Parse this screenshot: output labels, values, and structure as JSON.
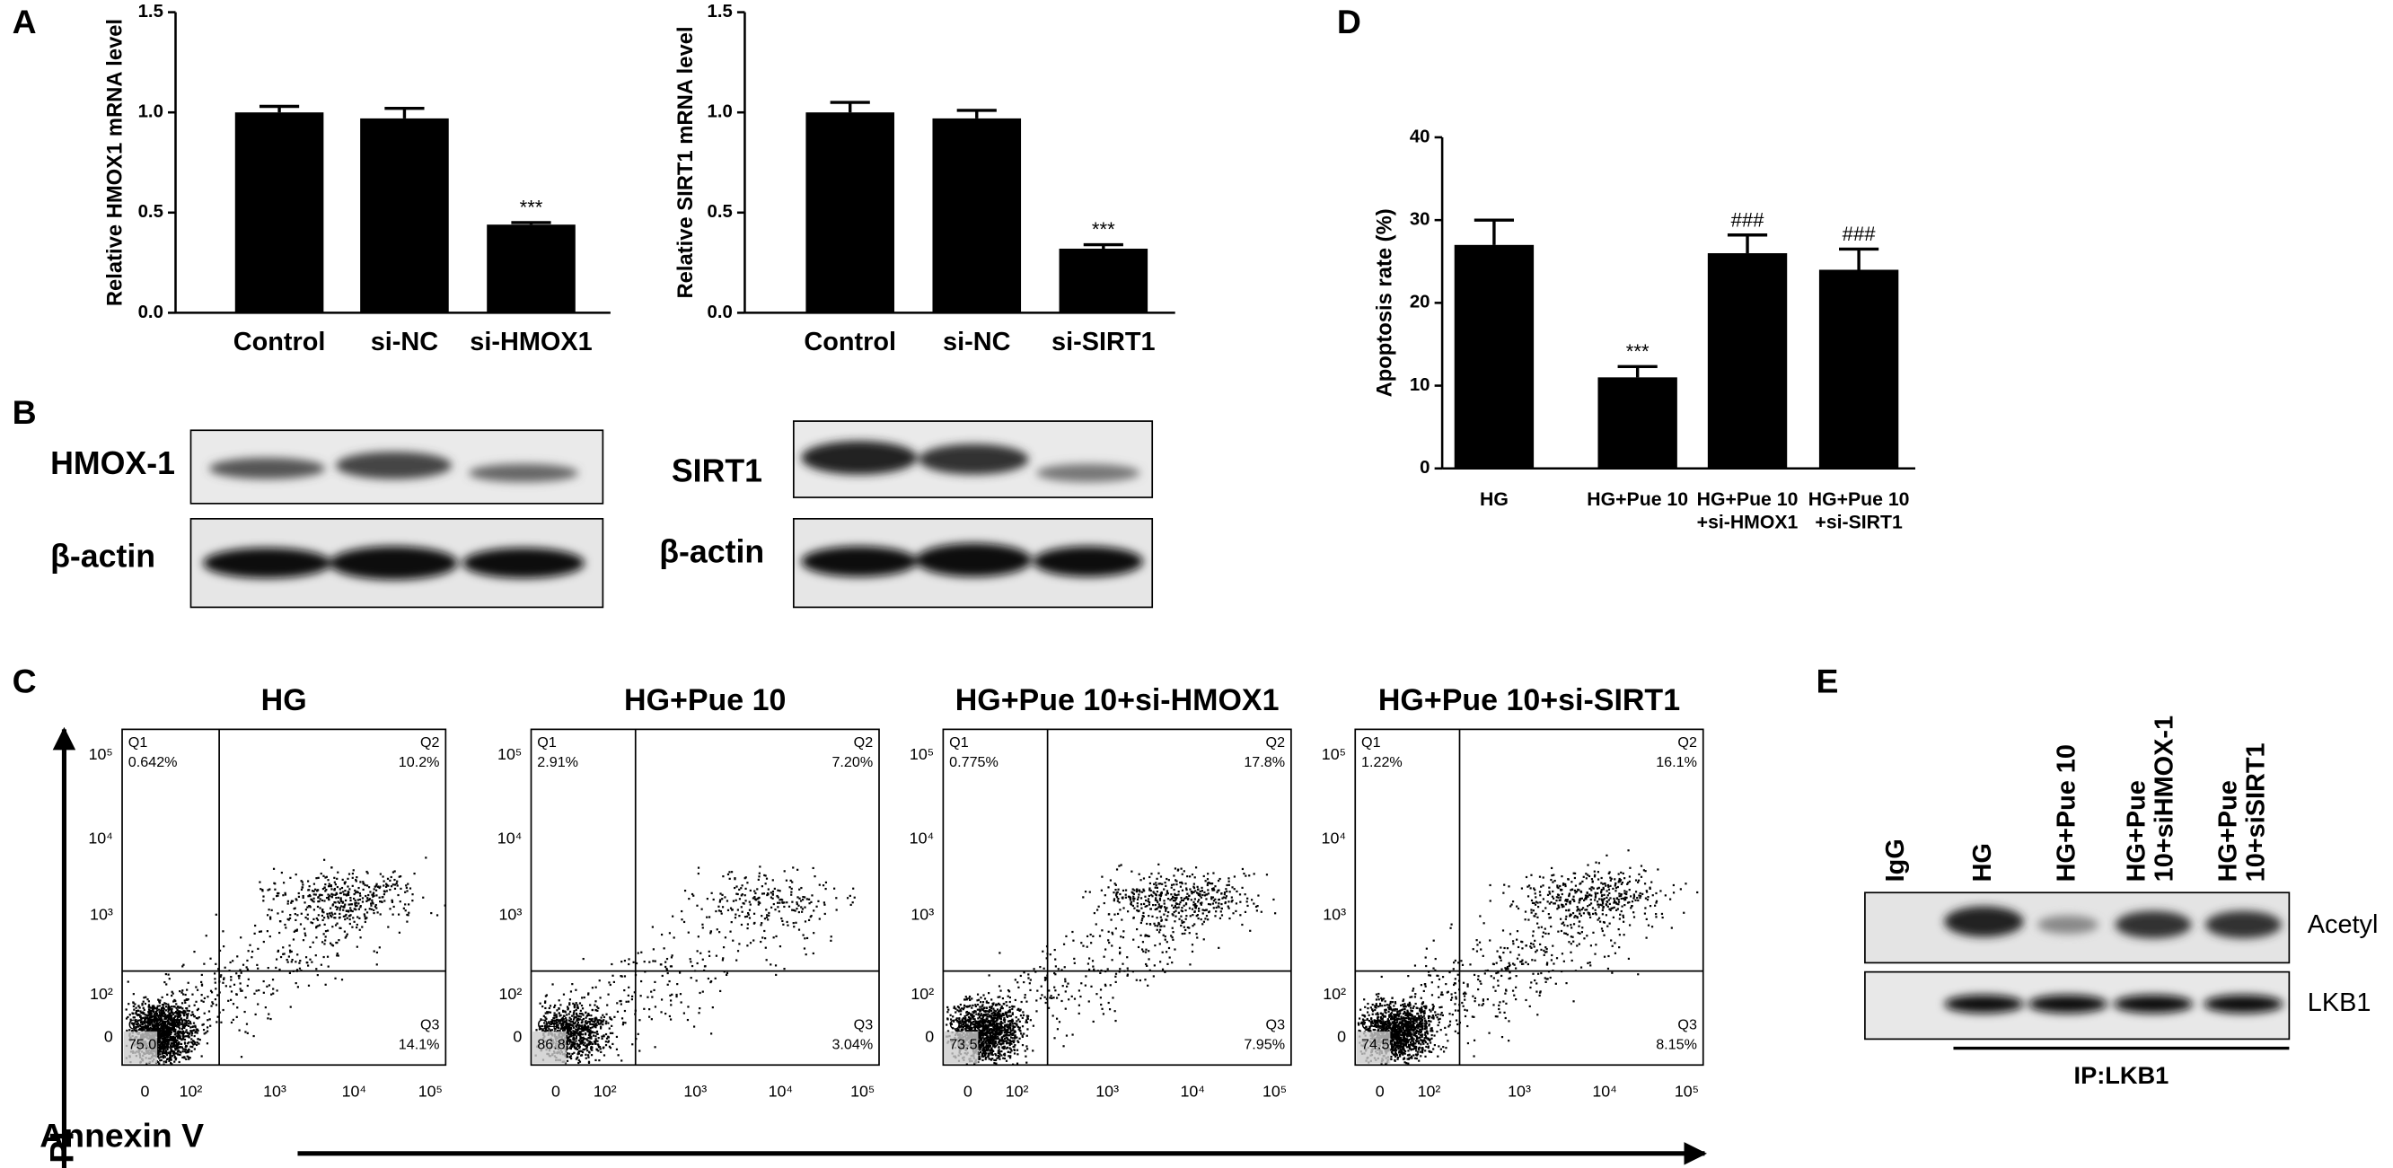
{
  "panel_labels": [
    "A",
    "B",
    "C",
    "D",
    "E"
  ],
  "chart_data": [
    {
      "type": "bar",
      "ylabel": "Relative HMOX1 mRNA level",
      "categories": [
        "Control",
        "si-NC",
        "si-HMOX1"
      ],
      "values": [
        1.0,
        0.97,
        0.44
      ],
      "errors": [
        0.03,
        0.05,
        0.01
      ],
      "color": "#000000",
      "ylim": [
        0,
        1.5
      ],
      "yticks": [
        {
          "value": 0,
          "label": "0.0"
        },
        {
          "value": 0.5,
          "label": "0.5"
        },
        {
          "value": 1,
          "label": "1.0"
        },
        {
          "value": 1.5,
          "label": "1.5"
        }
      ],
      "significance": [
        {
          "index": 2,
          "label": "***"
        }
      ]
    },
    {
      "type": "bar",
      "ylabel": "Relative SIRT1 mRNA level",
      "categories": [
        "Control",
        "si-NC",
        "si-SIRT1"
      ],
      "values": [
        1.0,
        0.97,
        0.32
      ],
      "errors": [
        0.05,
        0.04,
        0.02
      ],
      "color": "#000000",
      "ylim": [
        0,
        1.5
      ],
      "yticks": [
        {
          "value": 0,
          "label": "0.0"
        },
        {
          "value": 0.5,
          "label": "0.5"
        },
        {
          "value": 1,
          "label": "1.0"
        },
        {
          "value": 1.5,
          "label": "1.5"
        }
      ],
      "significance": [
        {
          "index": 2,
          "label": "***"
        }
      ]
    },
    {
      "type": "bar",
      "ylabel": "Apoptosis rate (%)",
      "categories": [
        [
          "HG"
        ],
        [
          "HG+Pue 10"
        ],
        [
          "HG+Pue 10",
          "+si-HMOX1"
        ],
        [
          "HG+Pue 10",
          "+si-SIRT1"
        ]
      ],
      "values": [
        27,
        11,
        26,
        24
      ],
      "errors": [
        3,
        1.3,
        2.2,
        2.5
      ],
      "color": "#000000",
      "ylim": [
        0,
        40
      ],
      "yticks": [
        0,
        10,
        20,
        30,
        40
      ],
      "significance": [
        {
          "index": 1,
          "label": "***"
        },
        {
          "index": 2,
          "label": "###"
        },
        {
          "index": 3,
          "label": "###"
        }
      ]
    }
  ],
  "western_blots": [
    {
      "rows": [
        "HMOX-1",
        "β-actin"
      ]
    },
    {
      "rows": [
        "SIRT1",
        "β-actin"
      ]
    }
  ],
  "flow_cytometry": {
    "y_axis_label": "PI",
    "x_axis_label": "Annexin V",
    "axis_ticks": [
      "0",
      "10²",
      "10³",
      "10⁴",
      "10⁵"
    ],
    "plots": [
      {
        "title": "HG",
        "quadrants": [
          [
            "Q1",
            "0.642%"
          ],
          [
            "Q2",
            "10.2%"
          ],
          [
            "Q3",
            "14.1%"
          ],
          [
            "Q4",
            "75.0%"
          ]
        ]
      },
      {
        "title": "HG+Pue 10",
        "quadrants": [
          [
            "Q1",
            "2.91%"
          ],
          [
            "Q2",
            "7.20%"
          ],
          [
            "Q3",
            "3.04%"
          ],
          [
            "Q4",
            "86.8%"
          ]
        ]
      },
      {
        "title": "HG+Pue 10+si-HMOX1",
        "quadrants": [
          [
            "Q1",
            "0.775%"
          ],
          [
            "Q2",
            "17.8%"
          ],
          [
            "Q3",
            "7.95%"
          ],
          [
            "Q4",
            "73.5%"
          ]
        ]
      },
      {
        "title": "HG+Pue 10+si-SIRT1",
        "quadrants": [
          [
            "Q1",
            "1.22%"
          ],
          [
            "Q2",
            "16.1%"
          ],
          [
            "Q3",
            "8.15%"
          ],
          [
            "Q4",
            "74.5%"
          ]
        ]
      }
    ]
  },
  "ip_blot": {
    "lanes": [
      [
        "IgG"
      ],
      [
        "HG"
      ],
      [
        "HG+Pue 10"
      ],
      [
        "HG+Pue",
        "10+siHMOX-1"
      ],
      [
        "HG+Pue",
        "10+siSIRT1"
      ]
    ],
    "rows": [
      "Acetyl",
      "LKB1"
    ],
    "caption": "IP:LKB1"
  }
}
